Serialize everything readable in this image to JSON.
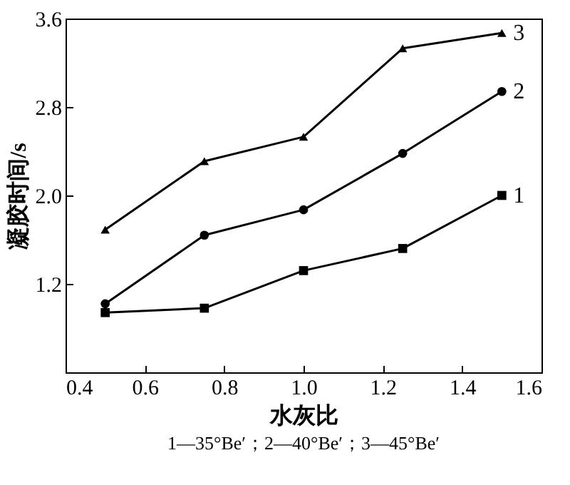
{
  "chart_data": {
    "type": "line",
    "xlabel": "水灰比",
    "ylabel": "凝胶时间/s",
    "x": [
      0.5,
      0.75,
      1.0,
      1.25,
      1.5
    ],
    "series": [
      {
        "name": "1",
        "color": "#000000",
        "marker": "square",
        "values": [
          0.94,
          0.98,
          1.32,
          1.52,
          2.0
        ]
      },
      {
        "name": "2",
        "color": "#000000",
        "marker": "circle",
        "values": [
          1.02,
          1.64,
          1.87,
          2.38,
          2.94
        ]
      },
      {
        "name": "3",
        "color": "#000000",
        "marker": "triangle",
        "values": [
          1.69,
          2.31,
          2.53,
          3.33,
          3.47
        ]
      }
    ],
    "xlim": [
      0.4,
      1.6
    ],
    "xticks": [
      0.4,
      0.6,
      0.8,
      {
        "value": 1,
        "label": "1.0"
      },
      1.2,
      1.4,
      1.6
    ],
    "ylim": [
      0.4,
      3.6
    ],
    "yticks": [
      1.2,
      {
        "value": 2,
        "label": "2.0"
      },
      2.8,
      3.6
    ],
    "grid": false,
    "line_style": "solid",
    "annotations": [
      "1—35°Be′；2—40°Be′；3—45°Be′"
    ]
  }
}
